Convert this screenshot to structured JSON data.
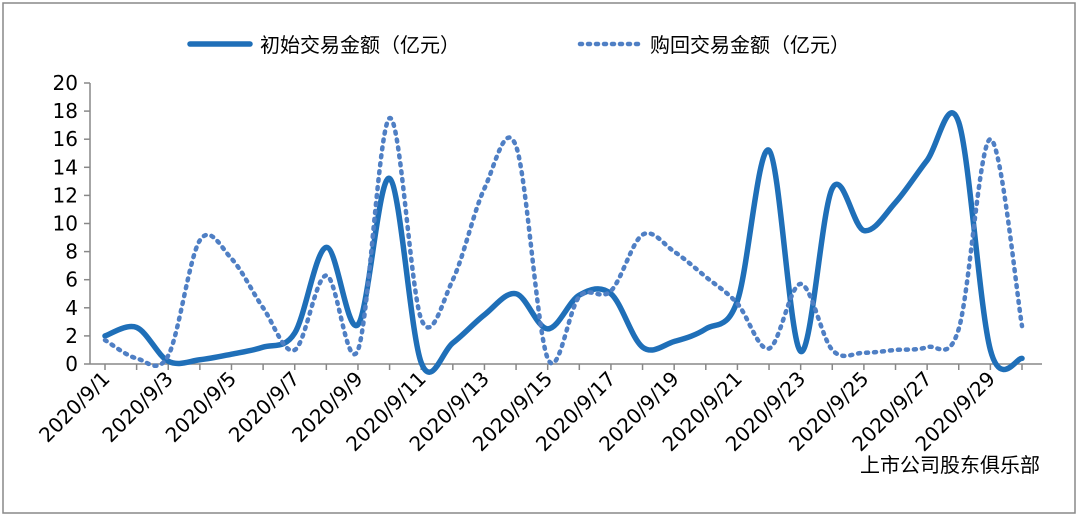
{
  "chart_data": {
    "type": "line",
    "categories": [
      "2020/9/1",
      null,
      "2020/9/3",
      null,
      "2020/9/5",
      null,
      "2020/9/7",
      null,
      "2020/9/9",
      null,
      "2020/9/11",
      null,
      "2020/9/13",
      null,
      "2020/9/15",
      null,
      "2020/9/17",
      null,
      "2020/9/19",
      null,
      "2020/9/21",
      null,
      "2020/9/23",
      null,
      "2020/9/25",
      null,
      "2020/9/27",
      null,
      "2020/9/29",
      null
    ],
    "series": [
      {
        "name": "初始交易金额（亿元）",
        "color": "#1f6fb8",
        "dash": false,
        "values": [
          2.0,
          2.6,
          0.2,
          0.3,
          0.7,
          1.2,
          2.2,
          8.3,
          2.8,
          13.2,
          0.1,
          1.5,
          3.5,
          5.0,
          2.5,
          4.9,
          5.0,
          1.2,
          1.6,
          2.5,
          4.5,
          15.2,
          0.9,
          12.5,
          9.5,
          11.5,
          14.5,
          17.2,
          1.0,
          0.4
        ]
      },
      {
        "name": "购回交易金额（亿元）",
        "color": "#4f7fc4",
        "dash": true,
        "values": [
          1.7,
          0.4,
          0.6,
          8.8,
          7.5,
          4.0,
          1.0,
          6.3,
          1.0,
          17.5,
          3.2,
          6.0,
          12.5,
          15.5,
          0.4,
          4.8,
          5.2,
          9.2,
          8.0,
          6.2,
          4.3,
          1.1,
          5.7,
          1.0,
          0.8,
          1.0,
          1.2,
          2.5,
          16.0,
          2.7
        ]
      }
    ],
    "ylim": [
      0,
      20
    ],
    "yticks": [
      0,
      2,
      4,
      6,
      8,
      10,
      12,
      14,
      16,
      18,
      20
    ],
    "legend": "top",
    "source_label": "上市公司股东俱乐部"
  }
}
